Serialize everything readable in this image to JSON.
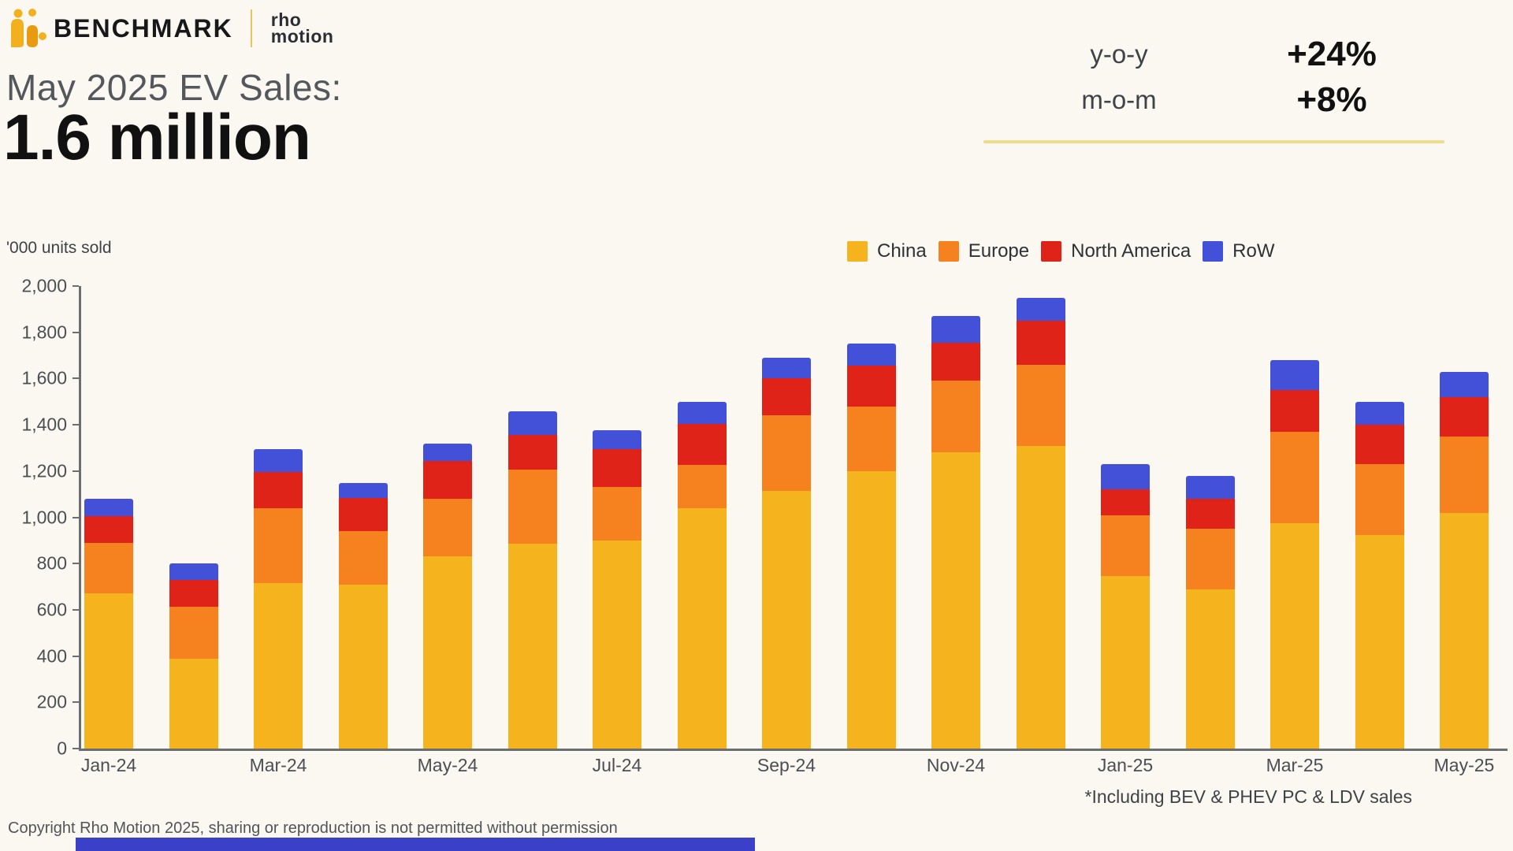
{
  "header": {
    "brand": "BENCHMARK",
    "partner_line1": "rho",
    "partner_line2": "motion",
    "title": "May 2025 EV Sales:",
    "headline_value": "1.6 million",
    "stats": [
      {
        "label": "y-o-y",
        "value": "+24%"
      },
      {
        "label": "m-o-m",
        "value": "+8%"
      }
    ]
  },
  "chart_data": {
    "type": "bar",
    "stacked": true,
    "title": "May 2025 EV Sales",
    "units_label": "'000 units sold",
    "ylim": [
      0,
      2000
    ],
    "y_ticks": [
      0,
      200,
      400,
      600,
      800,
      1000,
      1200,
      1400,
      1600,
      1800,
      2000
    ],
    "grid": false,
    "legend_position": "top-right",
    "categories": [
      "Jan-24",
      "Feb-24",
      "Mar-24",
      "Apr-24",
      "May-24",
      "Jun-24",
      "Jul-24",
      "Aug-24",
      "Sep-24",
      "Oct-24",
      "Nov-24",
      "Dec-24",
      "Jan-25",
      "Feb-25",
      "Mar-25",
      "Apr-25",
      "May-25"
    ],
    "x_tick_labels": [
      "Jan-24",
      "Mar-24",
      "May-24",
      "Jul-24",
      "Sep-24",
      "Nov-24",
      "Jan-25",
      "Mar-25",
      "May-25"
    ],
    "series": [
      {
        "name": "China",
        "color": "#F5B41E",
        "values": [
          670,
          390,
          715,
          710,
          830,
          885,
          900,
          1040,
          1115,
          1200,
          1280,
          1310,
          745,
          690,
          975,
          925,
          1020
        ]
      },
      {
        "name": "Europe",
        "color": "#F5821E",
        "values": [
          220,
          225,
          325,
          230,
          250,
          320,
          230,
          185,
          325,
          280,
          310,
          350,
          265,
          260,
          395,
          305,
          330
        ]
      },
      {
        "name": "North America",
        "color": "#DF2318",
        "values": [
          115,
          115,
          155,
          145,
          165,
          150,
          165,
          180,
          160,
          175,
          165,
          190,
          110,
          130,
          180,
          170,
          170
        ]
      },
      {
        "name": "RoW",
        "color": "#4350D8",
        "values": [
          75,
          70,
          100,
          65,
          75,
          105,
          80,
          95,
          90,
          95,
          115,
          100,
          110,
          100,
          130,
          100,
          110
        ]
      }
    ],
    "totals": [
      1080,
      800,
      1295,
      1150,
      1320,
      1460,
      1375,
      1500,
      1690,
      1750,
      1870,
      1950,
      1230,
      1180,
      1680,
      1500,
      1630
    ],
    "footnote": "*Including BEV & PHEV PC & LDV sales"
  },
  "footer": {
    "copyright": "Copyright Rho Motion 2025, sharing or reproduction is not permitted without permission"
  },
  "colors": {
    "background": "#FAF8F1",
    "stats_underline": "#EDDC8C",
    "axis": "#6b6e71",
    "bottom_highlight_bar": "#3A41C8"
  }
}
